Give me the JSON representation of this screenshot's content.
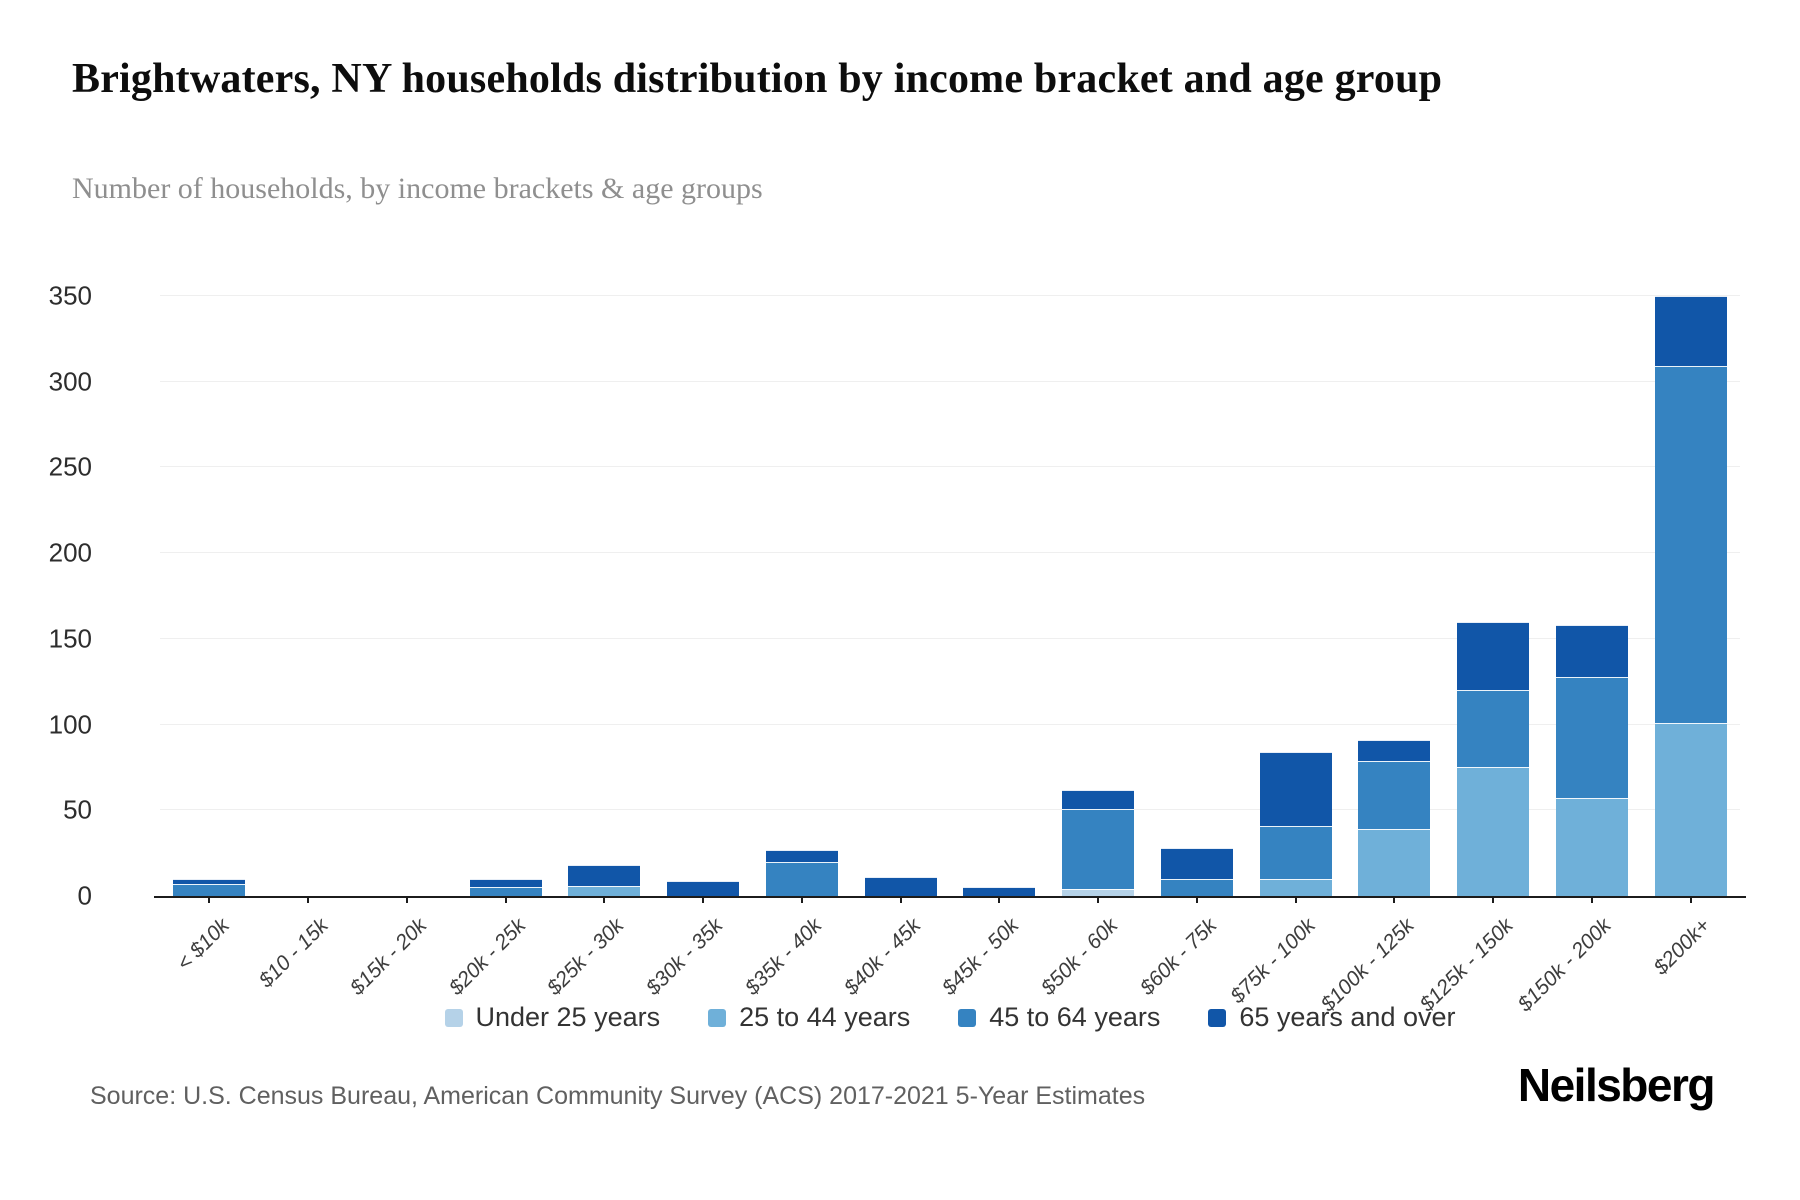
{
  "header": {
    "title": "Brightwaters, NY households distribution by income bracket and age group",
    "subtitle": "Number of households, by income brackets & age groups"
  },
  "source": {
    "label": "Source: U.S. Census Bureau, American Community Survey (ACS) 2017-2021 5-Year Estimates"
  },
  "branding": {
    "logo_text": "Neilsberg"
  },
  "chart_data": {
    "type": "bar",
    "stacked": true,
    "title": "Brightwaters, NY households distribution by income bracket and age group",
    "subtitle": "Number of households, by income brackets & age groups",
    "xlabel": "",
    "ylabel": "Number of households",
    "categories": [
      "< $10k",
      "$10 - 15k",
      "$15k - 20k",
      "$20k - 25k",
      "$25k - 30k",
      "$30k - 35k",
      "$35k - 40k",
      "$40k - 45k",
      "$45k - 50k",
      "$50k - 60k",
      "$60k - 75k",
      "$75k - 100k",
      "$100k - 125k",
      "$125k - 150k",
      "$150k - 200k",
      "$200k+"
    ],
    "series": [
      {
        "name": "Under 25 years",
        "color": "#b5d2e8",
        "values": [
          0,
          0,
          0,
          0,
          0,
          0,
          0,
          0,
          0,
          4,
          0,
          0,
          0,
          0,
          0,
          0
        ]
      },
      {
        "name": "25 to 44 years",
        "color": "#6fb0d9",
        "values": [
          0,
          0,
          0,
          0,
          6,
          0,
          0,
          0,
          0,
          0,
          0,
          10,
          39,
          75,
          57,
          101
        ]
      },
      {
        "name": "45 to 64 years",
        "color": "#3583c1",
        "values": [
          7,
          0,
          0,
          5,
          0,
          0,
          20,
          0,
          0,
          47,
          10,
          31,
          40,
          45,
          71,
          208
        ]
      },
      {
        "name": "65 years and over",
        "color": "#1156a8",
        "values": [
          3,
          0,
          0,
          5,
          12,
          9,
          7,
          11,
          5,
          11,
          18,
          43,
          12,
          40,
          30,
          41
        ]
      }
    ],
    "totals": [
      10,
      0,
      0,
      10,
      18,
      9,
      27,
      11,
      5,
      62,
      28,
      84,
      91,
      160,
      158,
      350
    ],
    "ylim": [
      0,
      350
    ],
    "ytick_step": 50,
    "grid": "horizontal",
    "legend_position": "bottom"
  }
}
